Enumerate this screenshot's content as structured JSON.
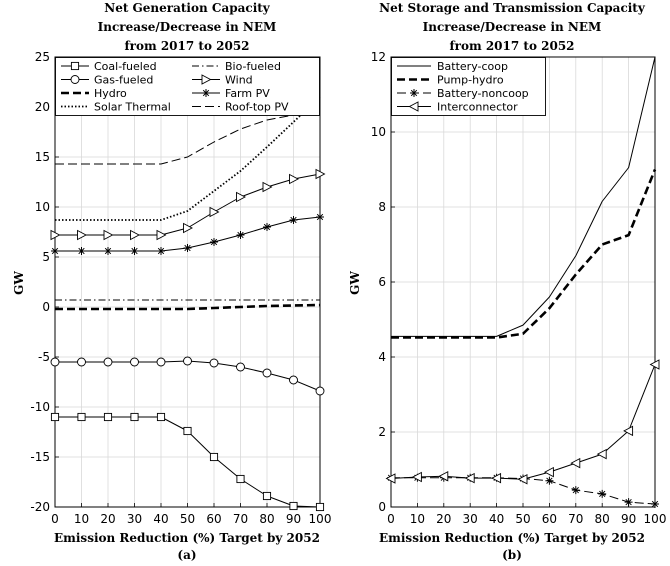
{
  "chart_data": [
    {
      "type": "line",
      "title": [
        "Net Generation Capacity",
        "Increase/Decrease in NEM",
        "from 2017 to 2052"
      ],
      "xlabel": "Emission Reduction (%) Target by 2052",
      "ylabel": "GW",
      "sublabel": "(a)",
      "x": [
        0,
        10,
        20,
        30,
        40,
        50,
        60,
        70,
        80,
        90,
        100
      ],
      "xlim": [
        0,
        100
      ],
      "ylim": [
        -20,
        25
      ],
      "xticks": [
        0,
        10,
        20,
        30,
        40,
        50,
        60,
        70,
        80,
        90,
        100
      ],
      "yticks": [
        -20,
        -15,
        -10,
        -5,
        0,
        5,
        10,
        15,
        20,
        25
      ],
      "grid": true,
      "legend": "top",
      "series": [
        {
          "name": "Coal-fueled",
          "style": "solid",
          "marker": "square",
          "values": [
            -11,
            -11,
            -11,
            -11,
            -11,
            -12.4,
            -15,
            -17.2,
            -18.9,
            -19.9,
            -20
          ]
        },
        {
          "name": "Bio-fueled",
          "style": "dashdot",
          "marker": "none",
          "values": [
            0.7,
            0.7,
            0.7,
            0.7,
            0.7,
            0.7,
            0.7,
            0.7,
            0.7,
            0.7,
            0.7
          ]
        },
        {
          "name": "Gas-fueled",
          "style": "solid",
          "marker": "circle",
          "values": [
            -5.5,
            -5.5,
            -5.5,
            -5.5,
            -5.5,
            -5.4,
            -5.6,
            -6,
            -6.6,
            -7.3,
            -8.4
          ]
        },
        {
          "name": "Wind",
          "style": "solid",
          "marker": "triangle-right",
          "values": [
            7.2,
            7.2,
            7.2,
            7.2,
            7.2,
            7.9,
            9.5,
            11,
            12,
            12.8,
            13.3
          ]
        },
        {
          "name": "Hydro",
          "style": "thickdash",
          "marker": "none",
          "values": [
            -0.2,
            -0.2,
            -0.2,
            -0.2,
            -0.2,
            -0.2,
            -0.1,
            0,
            0.1,
            0.15,
            0.2
          ]
        },
        {
          "name": "Farm PV",
          "style": "solid",
          "marker": "asterisk",
          "values": [
            5.6,
            5.6,
            5.6,
            5.6,
            5.6,
            5.9,
            6.5,
            7.2,
            8,
            8.7,
            9
          ]
        },
        {
          "name": "Solar Thermal",
          "style": "dotted",
          "marker": "none",
          "values": [
            8.7,
            8.7,
            8.7,
            8.7,
            8.7,
            9.6,
            11.6,
            13.6,
            16,
            18.5,
            21
          ]
        },
        {
          "name": "Roof-top PV",
          "style": "dashed",
          "marker": "none",
          "values": [
            14.3,
            14.3,
            14.3,
            14.3,
            14.3,
            15,
            16.5,
            17.8,
            18.7,
            19.2,
            19.2
          ]
        }
      ]
    },
    {
      "type": "line",
      "title": [
        "Net Storage and Transmission Capacity",
        "Increase/Decrease in NEM",
        "from 2017 to 2052"
      ],
      "xlabel": "Emission Reduction (%) Target by 2052",
      "ylabel": "GW",
      "sublabel": "(b)",
      "x": [
        0,
        10,
        20,
        30,
        40,
        50,
        60,
        70,
        80,
        90,
        100
      ],
      "xlim": [
        0,
        100
      ],
      "ylim": [
        0,
        12
      ],
      "xticks": [
        0,
        10,
        20,
        30,
        40,
        50,
        60,
        70,
        80,
        90,
        100
      ],
      "yticks": [
        0,
        2,
        4,
        6,
        8,
        10,
        12
      ],
      "grid": true,
      "legend": "top-left",
      "series": [
        {
          "name": "Battery-coop",
          "style": "solid",
          "marker": "none",
          "values": [
            4.55,
            4.55,
            4.55,
            4.55,
            4.55,
            4.85,
            5.6,
            6.7,
            8.15,
            9.05,
            12
          ]
        },
        {
          "name": "Pump-hydro",
          "style": "thickdash",
          "marker": "none",
          "values": [
            4.52,
            4.52,
            4.52,
            4.52,
            4.52,
            4.62,
            5.3,
            6.2,
            7,
            7.25,
            9
          ]
        },
        {
          "name": "Battery-noncoop",
          "style": "dashed",
          "marker": "asterisk",
          "values": [
            0.78,
            0.78,
            0.78,
            0.78,
            0.78,
            0.76,
            0.7,
            0.45,
            0.35,
            0.13,
            0.08
          ]
        },
        {
          "name": "Interconnector",
          "style": "solid",
          "marker": "triangle-left",
          "values": [
            0.76,
            0.8,
            0.82,
            0.77,
            0.77,
            0.74,
            0.93,
            1.17,
            1.41,
            2.03,
            3.8
          ]
        }
      ]
    }
  ]
}
